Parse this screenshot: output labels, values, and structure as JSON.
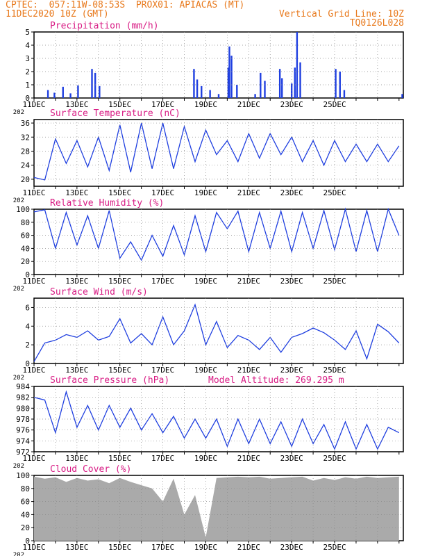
{
  "header": {
    "line1": "CPTEC:  057:11W-08:53S  PROX01: APIACAS (MT)",
    "line2_left": "11DEC2020 10Z (GMT)",
    "line2_right": "Vertical Grid Line: 10Z",
    "line3_right": "TQ0126L028"
  },
  "colors": {
    "header": "#e8791c",
    "title": "#d81b84",
    "series": "#1f3fe0",
    "cloud": "#aaaaaa"
  },
  "x_axis": {
    "tick_labels": [
      "11DEC",
      "13DEC",
      "15DEC",
      "17DEC",
      "19DEC",
      "21DEC",
      "23DEC",
      "25DEC"
    ],
    "year_fragment": "202"
  },
  "model_altitude": "Model Altitude: 269.295 m",
  "chart_data": [
    {
      "type": "bar",
      "title": "Precipitation (mm/h)",
      "ylim": [
        0,
        5
      ],
      "yticks": [
        0,
        1,
        2,
        3,
        4,
        5
      ],
      "bars": [
        [
          0.65,
          0.6
        ],
        [
          0.95,
          0.4
        ],
        [
          1.35,
          0.85
        ],
        [
          1.7,
          0.35
        ],
        [
          2.05,
          0.95
        ],
        [
          2.7,
          2.2
        ],
        [
          2.85,
          1.9
        ],
        [
          3.05,
          0.9
        ],
        [
          7.45,
          2.2
        ],
        [
          7.6,
          1.4
        ],
        [
          7.8,
          0.9
        ],
        [
          8.2,
          0.6
        ],
        [
          8.6,
          0.3
        ],
        [
          9.05,
          2.3
        ],
        [
          9.1,
          3.9
        ],
        [
          9.2,
          3.2
        ],
        [
          9.45,
          1.0
        ],
        [
          10.3,
          0.3
        ],
        [
          10.55,
          1.9
        ],
        [
          10.75,
          1.3
        ],
        [
          11.45,
          2.2
        ],
        [
          11.55,
          1.5
        ],
        [
          12.0,
          1.1
        ],
        [
          12.15,
          2.3
        ],
        [
          12.25,
          5.0
        ],
        [
          12.4,
          2.7
        ],
        [
          14.05,
          2.2
        ],
        [
          14.25,
          2.0
        ],
        [
          14.45,
          0.6
        ],
        [
          17.15,
          0.3
        ]
      ]
    },
    {
      "type": "line",
      "title": "Surface Temperature (nC)",
      "ylim": [
        18,
        37
      ],
      "yticks": [
        20,
        24,
        28,
        32,
        36
      ],
      "x": [
        0,
        0.5,
        1.0,
        1.5,
        2.0,
        2.5,
        3.0,
        3.5,
        4.0,
        4.5,
        5.0,
        5.5,
        6.0,
        6.5,
        7.0,
        7.5,
        8.0,
        8.5,
        9.0,
        9.5,
        10.0,
        10.5,
        11.0,
        11.5,
        12.0,
        12.5,
        13.0,
        13.5,
        14.0,
        14.5,
        15.0,
        15.5,
        16.0,
        16.5,
        17.0
      ],
      "values": [
        20.5,
        19.8,
        31.5,
        24.5,
        31,
        23.5,
        32,
        22.5,
        35.5,
        22,
        36,
        23,
        36,
        23,
        35,
        25,
        34,
        27,
        31,
        25,
        33,
        26,
        33,
        27,
        32,
        25,
        31,
        24,
        31,
        25,
        30,
        25,
        30,
        25,
        29.5
      ]
    },
    {
      "type": "line",
      "title": "Relative Humidity (%)",
      "ylim": [
        0,
        100
      ],
      "yticks": [
        0,
        20,
        40,
        60,
        80,
        100
      ],
      "x": [
        0,
        0.5,
        1.0,
        1.5,
        2.0,
        2.5,
        3.0,
        3.5,
        4.0,
        4.5,
        5.0,
        5.5,
        6.0,
        6.5,
        7.0,
        7.5,
        8.0,
        8.5,
        9.0,
        9.5,
        10.0,
        10.5,
        11.0,
        11.5,
        12.0,
        12.5,
        13.0,
        13.5,
        14.0,
        14.5,
        15.0,
        15.5,
        16.0,
        16.5,
        17.0
      ],
      "values": [
        96,
        99,
        40,
        95,
        45,
        90,
        40,
        98,
        25,
        50,
        22,
        60,
        28,
        75,
        30,
        90,
        35,
        95,
        70,
        97,
        35,
        95,
        40,
        97,
        35,
        95,
        40,
        98,
        38,
        100,
        35,
        98,
        35,
        100,
        60
      ]
    },
    {
      "type": "line",
      "title": "Surface Wind (m/s)",
      "ylim": [
        0,
        7
      ],
      "yticks": [
        0,
        2,
        4,
        6
      ],
      "x": [
        0,
        0.5,
        1.0,
        1.5,
        2.0,
        2.5,
        3.0,
        3.5,
        4.0,
        4.5,
        5.0,
        5.5,
        6.0,
        6.5,
        7.0,
        7.5,
        8.0,
        8.5,
        9.0,
        9.5,
        10.0,
        10.5,
        11.0,
        11.5,
        12.0,
        12.5,
        13.0,
        13.5,
        14.0,
        14.5,
        15.0,
        15.5,
        16.0,
        16.5,
        17.0
      ],
      "values": [
        0.2,
        2.2,
        2.5,
        3.1,
        2.8,
        3.5,
        2.5,
        2.9,
        4.8,
        2.2,
        3.2,
        2.0,
        5.0,
        2.0,
        3.5,
        6.3,
        2.0,
        4.5,
        1.7,
        3.0,
        2.5,
        1.5,
        2.8,
        1.2,
        2.8,
        3.2,
        3.8,
        3.3,
        2.5,
        1.5,
        3.5,
        0.5,
        4.2,
        3.4,
        2.2
      ]
    },
    {
      "type": "line",
      "title": "Surface Pressure (hPa)",
      "ylim": [
        972,
        984
      ],
      "yticks": [
        972,
        974,
        976,
        978,
        980,
        982,
        984
      ],
      "x": [
        0,
        0.5,
        1.0,
        1.5,
        2.0,
        2.5,
        3.0,
        3.5,
        4.0,
        4.5,
        5.0,
        5.5,
        6.0,
        6.5,
        7.0,
        7.5,
        8.0,
        8.5,
        9.0,
        9.5,
        10.0,
        10.5,
        11.0,
        11.5,
        12.0,
        12.5,
        13.0,
        13.5,
        14.0,
        14.5,
        15.0,
        15.5,
        16.0,
        16.5,
        17.0
      ],
      "values": [
        982,
        981.5,
        975.5,
        983,
        976.5,
        980.5,
        976,
        980.5,
        976.5,
        980,
        976,
        979,
        975.5,
        978.5,
        974.5,
        978,
        974.5,
        978,
        973,
        978,
        973.5,
        978,
        973.5,
        977.5,
        973,
        978,
        973.5,
        977,
        972.5,
        977.5,
        972.5,
        977,
        972.5,
        976.5,
        975.5
      ]
    },
    {
      "type": "area",
      "title": "Cloud Cover (%)",
      "ylim": [
        0,
        100
      ],
      "yticks": [
        0,
        20,
        40,
        60,
        80,
        100
      ],
      "x": [
        0,
        0.5,
        1.0,
        1.5,
        2.0,
        2.5,
        3.0,
        3.5,
        4.0,
        4.5,
        5.0,
        5.5,
        6.0,
        6.5,
        7.0,
        7.5,
        8.0,
        8.5,
        9.0,
        9.5,
        10.0,
        10.5,
        11.0,
        11.5,
        12.0,
        12.5,
        13.0,
        13.5,
        14.0,
        14.5,
        15.0,
        15.5,
        16.0,
        16.5,
        17.0
      ],
      "values": [
        98,
        95,
        97,
        90,
        96,
        92,
        94,
        88,
        96,
        90,
        85,
        80,
        60,
        95,
        40,
        70,
        5,
        96,
        97,
        98,
        97,
        98,
        95,
        96,
        97,
        98,
        92,
        96,
        93,
        97,
        95,
        98,
        96,
        97,
        98
      ]
    }
  ]
}
